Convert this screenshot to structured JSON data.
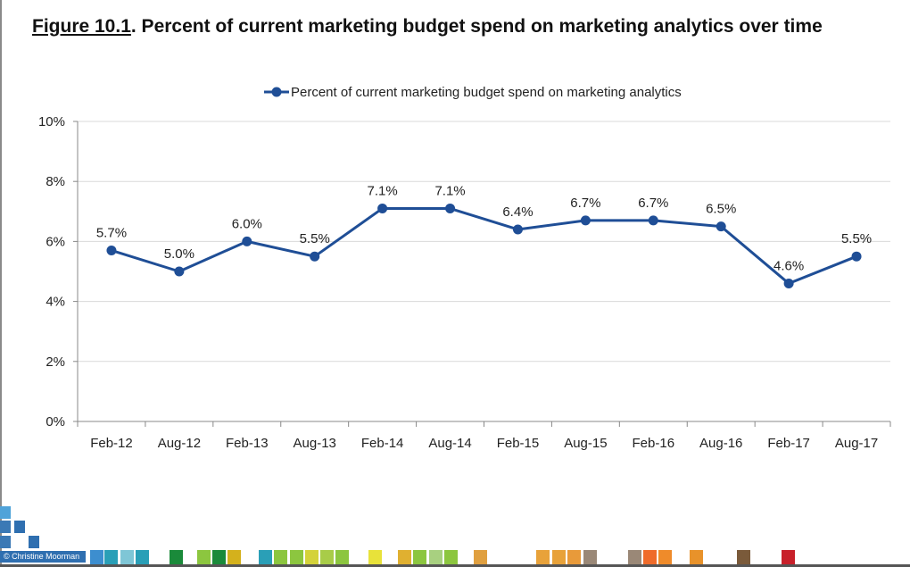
{
  "figure": {
    "number": "Figure 10.1",
    "title_rest": ". Percent of current marketing budget spend on marketing analytics over time"
  },
  "chart_data": {
    "type": "line",
    "categories": [
      "Feb-12",
      "Aug-12",
      "Feb-13",
      "Aug-13",
      "Feb-14",
      "Aug-14",
      "Feb-15",
      "Aug-15",
      "Feb-16",
      "Aug-16",
      "Feb-17",
      "Aug-17"
    ],
    "series": [
      {
        "name": "Percent of current marketing budget spend on marketing analytics",
        "values": [
          5.7,
          5.0,
          6.0,
          5.5,
          7.1,
          7.1,
          6.4,
          6.7,
          6.7,
          6.5,
          4.6,
          5.5
        ],
        "labels": [
          "5.7%",
          "5.0%",
          "6.0%",
          "5.5%",
          "7.1%",
          "7.1%",
          "6.4%",
          "6.7%",
          "6.7%",
          "6.5%",
          "4.6%",
          "5.5%"
        ],
        "color": "#1f4e96"
      }
    ],
    "ylim": [
      0,
      10
    ],
    "yticks": [
      0,
      2,
      4,
      6,
      8,
      10
    ],
    "ytick_labels": [
      "0%",
      "2%",
      "4%",
      "6%",
      "8%",
      "10%"
    ],
    "grid": true,
    "legend_position": "top-center"
  },
  "footer": {
    "credit": "© Christine Moorman",
    "colors": [
      "#2f6fb0",
      "#3d8ecf",
      "#2a9fb7",
      "#7fc6d6",
      "#1a8a3a",
      "#8cc63f",
      "#1a8a3a",
      "#d4b11c",
      "#2a9fb7",
      "#8cc63f",
      "#e8e23a",
      "#e8a23a",
      "#8cc63f",
      "#e0a040",
      "#e8a23a",
      "#9a8877",
      "#ef6b2a",
      "#7a5a3a",
      "#c8202a"
    ]
  }
}
